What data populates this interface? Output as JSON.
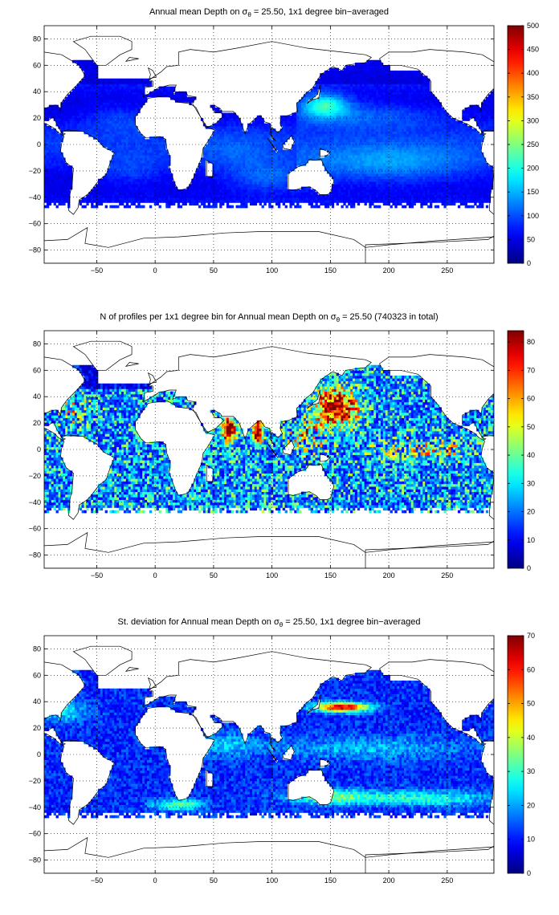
{
  "chart_data": [
    {
      "type": "heatmap",
      "title": "Annual mean Depth on σθ = 25.50, 1x1 degree bin−averaged",
      "title_parts": {
        "pre": "Annual mean Depth on ",
        "sym": "σ",
        "sub": "θ",
        "post": " = 25.50, 1x1 degree bin−averaged"
      },
      "xlim": [
        -95,
        290
      ],
      "ylim": [
        -90,
        90
      ],
      "x_ticks": [
        -50,
        0,
        50,
        100,
        150,
        200,
        250
      ],
      "y_ticks": [
        80,
        60,
        40,
        20,
        0,
        -20,
        -40,
        -60,
        -80
      ],
      "grid": true,
      "colorbar": {
        "min": 0,
        "max": 500,
        "ticks": [
          0,
          50,
          100,
          150,
          200,
          250,
          300,
          350,
          400,
          450,
          500
        ]
      },
      "field": "depth"
    },
    {
      "type": "heatmap",
      "title": "N of profiles per 1x1 degree bin for Annual mean Depth on σθ = 25.50 (740323 in total)",
      "title_parts": {
        "pre": "N of profiles per 1x1 degree bin for Annual mean Depth on ",
        "sym": "σ",
        "sub": "θ",
        "post": " = 25.50 (740323 in total)"
      },
      "xlim": [
        -95,
        290
      ],
      "ylim": [
        -90,
        90
      ],
      "x_ticks": [
        -50,
        0,
        50,
        100,
        150,
        200,
        250
      ],
      "y_ticks": [
        80,
        60,
        40,
        20,
        0,
        -20,
        -40,
        -60,
        -80
      ],
      "grid": true,
      "colorbar": {
        "min": 0,
        "max": 84,
        "ticks": [
          0,
          10,
          20,
          30,
          40,
          50,
          60,
          70,
          80
        ]
      },
      "field": "count"
    },
    {
      "type": "heatmap",
      "title": "St. deviation for Annual mean Depth on σθ = 25.50, 1x1 degree bin−averaged",
      "title_parts": {
        "pre": "St. deviation for Annual mean Depth on ",
        "sym": "σ",
        "sub": "θ",
        "post": " = 25.50, 1x1 degree bin−averaged"
      },
      "xlim": [
        -95,
        290
      ],
      "ylim": [
        -90,
        90
      ],
      "x_ticks": [
        -50,
        0,
        50,
        100,
        150,
        200,
        250
      ],
      "y_ticks": [
        80,
        60,
        40,
        20,
        0,
        -20,
        -40,
        -60,
        -80
      ],
      "grid": true,
      "colorbar": {
        "min": 0,
        "max": 70,
        "ticks": [
          0,
          10,
          20,
          30,
          40,
          50,
          60,
          70
        ]
      },
      "field": "std"
    }
  ]
}
